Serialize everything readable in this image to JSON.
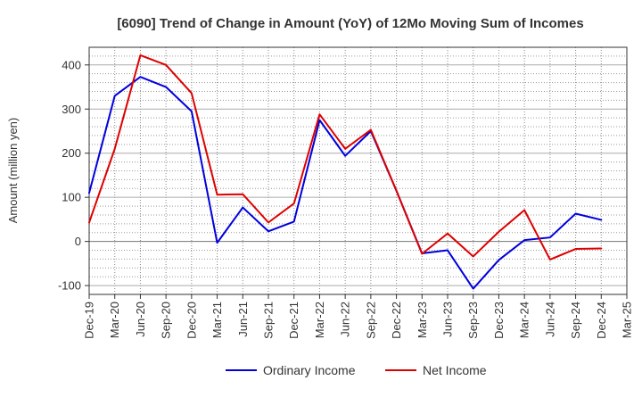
{
  "chart_data": {
    "type": "line",
    "title": "[6090]  Trend of Change in Amount (YoY) of 12Mo Moving Sum of Incomes",
    "xlabel": "",
    "ylabel": "Amount (million yen)",
    "ylim": [
      -120,
      440
    ],
    "yticks": [
      -100,
      0,
      100,
      200,
      300,
      400
    ],
    "categories": [
      "Dec-19",
      "Mar-20",
      "Jun-20",
      "Sep-20",
      "Dec-20",
      "Mar-21",
      "Jun-21",
      "Sep-21",
      "Dec-21",
      "Mar-22",
      "Jun-22",
      "Sep-22",
      "Dec-22",
      "Mar-23",
      "Jun-23",
      "Sep-23",
      "Dec-23",
      "Mar-24",
      "Jun-24",
      "Sep-24",
      "Dec-24",
      "Mar-25"
    ],
    "grid": true,
    "legend_position": "bottom",
    "series": [
      {
        "name": "Ordinary Income",
        "color": "#0000dd",
        "values": [
          110,
          330,
          373,
          350,
          295,
          -3,
          77,
          23,
          45,
          275,
          194,
          250,
          115,
          -27,
          -20,
          -107,
          -42,
          3,
          9,
          63,
          49,
          null
        ]
      },
      {
        "name": "Net Income",
        "color": "#dd0000",
        "values": [
          43,
          210,
          422,
          400,
          336,
          106,
          107,
          43,
          86,
          288,
          210,
          253,
          115,
          -28,
          18,
          -34,
          22,
          71,
          -41,
          -17,
          -16,
          null
        ]
      }
    ]
  }
}
